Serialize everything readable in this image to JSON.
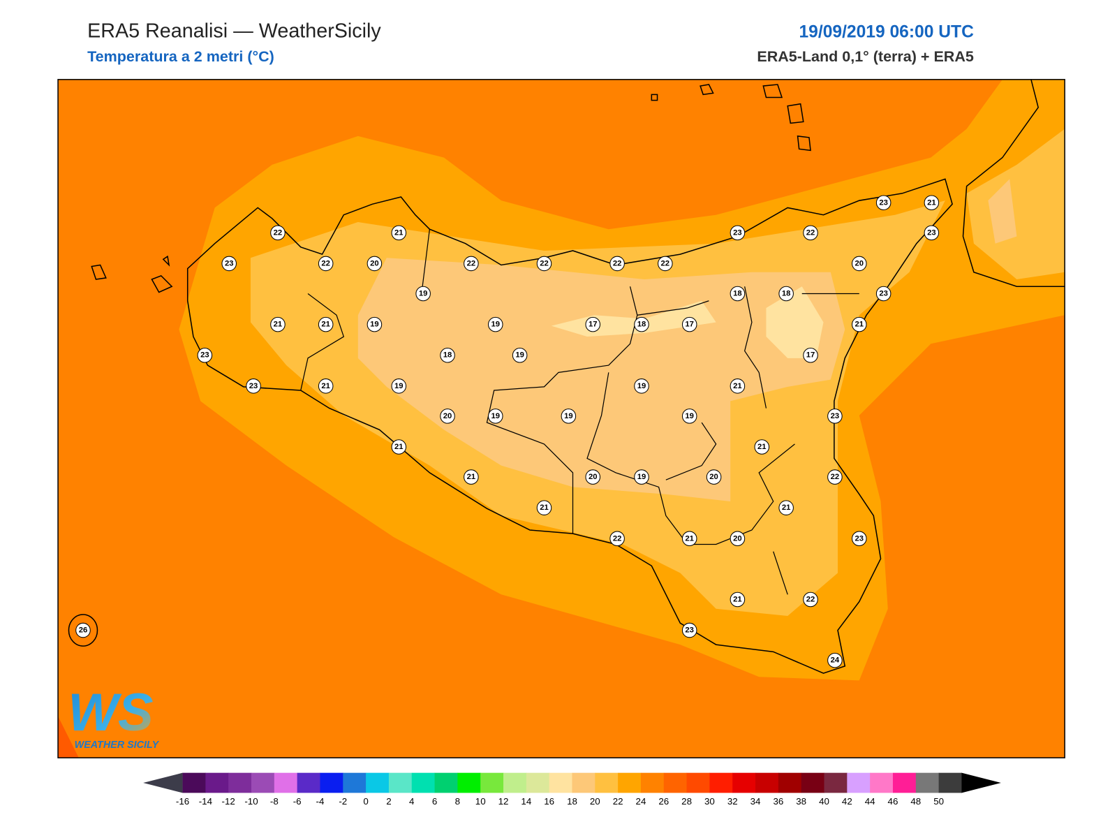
{
  "header": {
    "title": "ERA5 Reanalisi — WeatherSicily",
    "subtitle": "Temperatura a 2 metri (°C)",
    "datetime": "19/09/2019 06:00 UTC",
    "source": "ERA5-Land 0,1° (terra) + ERA5"
  },
  "map": {
    "stations": [
      22,
      21,
      23,
      22,
      20,
      22,
      22,
      22,
      22,
      23,
      22,
      23,
      21,
      23,
      20,
      19,
      18,
      18,
      23,
      21,
      21,
      19,
      19,
      17,
      18,
      17,
      21,
      23,
      18,
      19,
      17,
      23,
      21,
      19,
      19,
      21,
      20,
      19,
      19,
      19,
      23,
      21,
      21,
      21,
      20,
      19,
      20,
      22,
      21,
      21,
      22,
      21,
      20,
      23,
      21,
      22,
      23,
      24,
      26
    ]
  },
  "logo": {
    "letters": "WS",
    "name": "WEATHER SICILY"
  },
  "colorbar": {
    "ticks": [
      -16,
      -14,
      -12,
      -10,
      -8,
      -6,
      -4,
      -2,
      0,
      2,
      4,
      6,
      8,
      10,
      12,
      14,
      16,
      18,
      20,
      22,
      24,
      26,
      28,
      30,
      32,
      34,
      36,
      38,
      40,
      42,
      44,
      46,
      48,
      50
    ],
    "colors": [
      "#4b0a5a",
      "#6a1a8a",
      "#7e2d9b",
      "#9b4bb5",
      "#e070e8",
      "#5a2ac8",
      "#0a1ef0",
      "#1e78d8",
      "#0ac8e6",
      "#5ae6c8",
      "#00e0b0",
      "#00d070",
      "#00ee00",
      "#78e83c",
      "#c0ee8c",
      "#dce89a",
      "#ffe3a0",
      "#fdc878",
      "#ffc040",
      "#ffa500",
      "#ff8200",
      "#ff6400",
      "#ff4a00",
      "#ff1e00",
      "#e60000",
      "#c80000",
      "#a00000",
      "#780014",
      "#7a2840",
      "#d8a0ff",
      "#ff78c8",
      "#ff1e96",
      "#787878",
      "#3c3c3c"
    ],
    "under_color": "#3c3c4a",
    "over_color": "#000000"
  }
}
